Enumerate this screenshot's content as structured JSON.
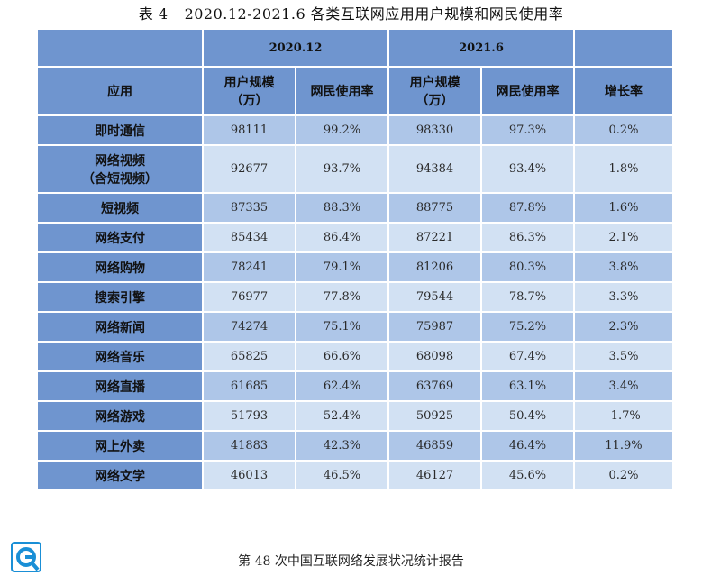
{
  "caption": {
    "table_no": "表 4",
    "text": "2020.12-2021.6 各类互联网应用用户规模和网民使用率"
  },
  "header": {
    "period1": "2020.12",
    "period2": "2021.6",
    "app": "应用",
    "users_line1": "用户规模",
    "users_line2": "（万）",
    "usage_rate": "网民使用率",
    "growth": "增长率"
  },
  "rows": [
    {
      "app": "即时通信",
      "app2": "",
      "u1": "98111",
      "r1": "99.2%",
      "u2": "98330",
      "r2": "97.3%",
      "g": "0.2%"
    },
    {
      "app": "网络视频",
      "app2": "（含短视频）",
      "u1": "92677",
      "r1": "93.7%",
      "u2": "94384",
      "r2": "93.4%",
      "g": "1.8%"
    },
    {
      "app": "短视频",
      "app2": "",
      "u1": "87335",
      "r1": "88.3%",
      "u2": "88775",
      "r2": "87.8%",
      "g": "1.6%"
    },
    {
      "app": "网络支付",
      "app2": "",
      "u1": "85434",
      "r1": "86.4%",
      "u2": "87221",
      "r2": "86.3%",
      "g": "2.1%"
    },
    {
      "app": "网络购物",
      "app2": "",
      "u1": "78241",
      "r1": "79.1%",
      "u2": "81206",
      "r2": "80.3%",
      "g": "3.8%"
    },
    {
      "app": "搜索引擎",
      "app2": "",
      "u1": "76977",
      "r1": "77.8%",
      "u2": "79544",
      "r2": "78.7%",
      "g": "3.3%"
    },
    {
      "app": "网络新闻",
      "app2": "",
      "u1": "74274",
      "r1": "75.1%",
      "u2": "75987",
      "r2": "75.2%",
      "g": "2.3%"
    },
    {
      "app": "网络音乐",
      "app2": "",
      "u1": "65825",
      "r1": "66.6%",
      "u2": "68098",
      "r2": "67.4%",
      "g": "3.5%"
    },
    {
      "app": "网络直播",
      "app2": "",
      "u1": "61685",
      "r1": "62.4%",
      "u2": "63769",
      "r2": "63.1%",
      "g": "3.4%"
    },
    {
      "app": "网络游戏",
      "app2": "",
      "u1": "51793",
      "r1": "52.4%",
      "u2": "50925",
      "r2": "50.4%",
      "g": "-1.7%"
    },
    {
      "app": "网上外卖",
      "app2": "",
      "u1": "41883",
      "r1": "42.3%",
      "u2": "46859",
      "r2": "46.4%",
      "g": "11.9%"
    },
    {
      "app": "网络文学",
      "app2": "",
      "u1": "46013",
      "r1": "46.5%",
      "u2": "46127",
      "r2": "45.6%",
      "g": "0.2%"
    }
  ],
  "footer": {
    "text": "第 48 次中国互联网络发展状况统计报告"
  },
  "logo": {
    "icon": "cnnic-logo-icon",
    "color": "#1a8fd6"
  }
}
